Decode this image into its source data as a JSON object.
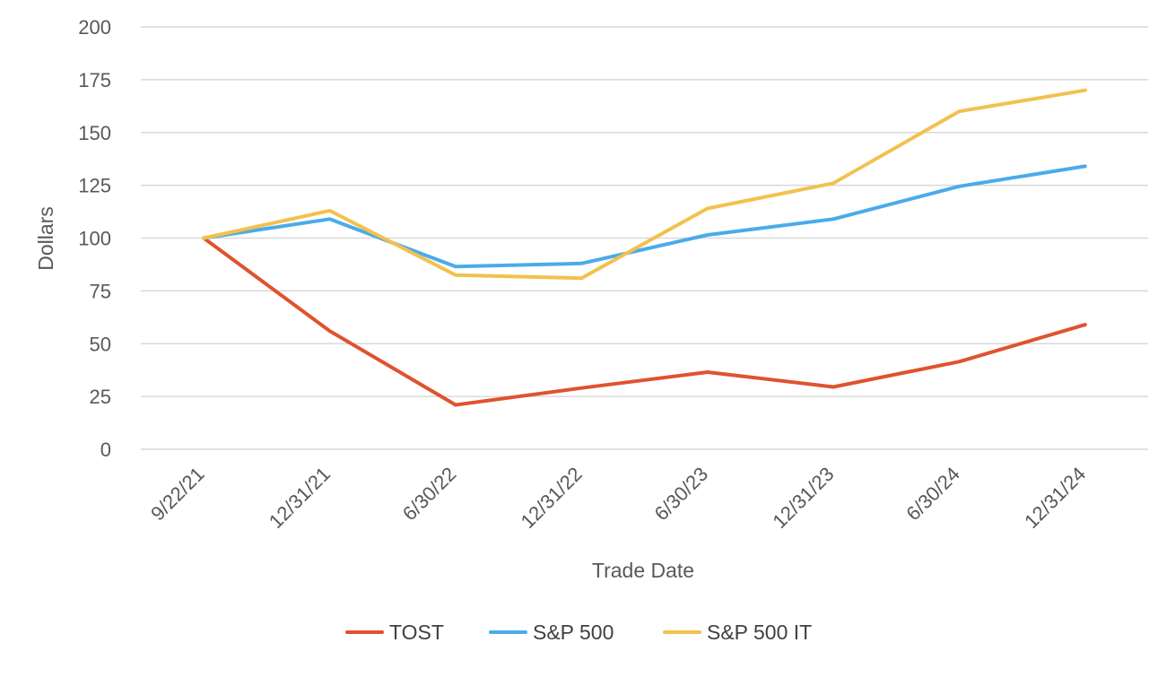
{
  "chart_data": {
    "type": "line",
    "title": "",
    "xlabel": "Trade Date",
    "ylabel": "Dollars",
    "categories": [
      "9/22/21",
      "12/31/21",
      "6/30/22",
      "12/31/22",
      "6/30/23",
      "12/31/23",
      "6/30/24",
      "12/31/24"
    ],
    "ylim": [
      0,
      200
    ],
    "yticks": [
      0,
      25,
      50,
      75,
      100,
      125,
      150,
      175,
      200
    ],
    "grid": true,
    "legend_position": "bottom",
    "series": [
      {
        "name": "TOST",
        "color": "#e0522f",
        "values": [
          100,
          56,
          21,
          29,
          36.5,
          29.5,
          41.5,
          59
        ]
      },
      {
        "name": "S&P 500",
        "color": "#4aabeb",
        "values": [
          100,
          109,
          86.5,
          88,
          101.5,
          109,
          124.5,
          134
        ]
      },
      {
        "name": "S&P 500 IT",
        "color": "#f2c14e",
        "values": [
          100,
          113,
          82.5,
          81,
          114,
          126,
          160,
          170
        ]
      }
    ]
  }
}
